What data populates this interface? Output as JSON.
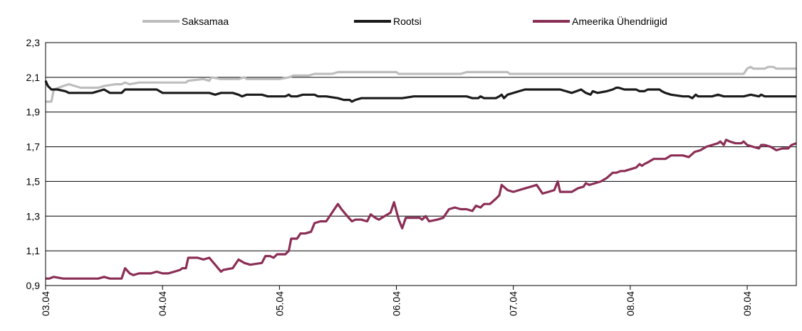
{
  "chart_data": {
    "type": "line",
    "ylim": [
      0.9,
      2.3
    ],
    "yticks": [
      "0,9",
      "1,1",
      "1,3",
      "1,5",
      "1,7",
      "1,9",
      "2,1",
      "2,3"
    ],
    "ytick_values": [
      0.9,
      1.1,
      1.3,
      1.5,
      1.7,
      1.9,
      2.1,
      2.3
    ],
    "xlim": [
      0,
      6.42
    ],
    "xticks": [
      "03.04",
      "04.04",
      "05.04",
      "06.04",
      "07.04",
      "08.04",
      "09.04"
    ],
    "xtick_values": [
      0,
      1,
      2,
      3,
      4,
      5,
      6
    ],
    "grid": "horizontal",
    "legend_position": "top",
    "series": [
      {
        "name": "Saksamaa",
        "color": "#bdbdbd",
        "points": [
          [
            0.0,
            1.96
          ],
          [
            0.05,
            1.96
          ],
          [
            0.07,
            2.03
          ],
          [
            0.15,
            2.05
          ],
          [
            0.2,
            2.06
          ],
          [
            0.3,
            2.04
          ],
          [
            0.45,
            2.04
          ],
          [
            0.5,
            2.05
          ],
          [
            0.6,
            2.06
          ],
          [
            0.65,
            2.06
          ],
          [
            0.68,
            2.07
          ],
          [
            0.72,
            2.06
          ],
          [
            0.8,
            2.07
          ],
          [
            0.95,
            2.07
          ],
          [
            1.0,
            2.07
          ],
          [
            1.2,
            2.07
          ],
          [
            1.22,
            2.08
          ],
          [
            1.35,
            2.09
          ],
          [
            1.4,
            2.08
          ],
          [
            1.42,
            2.1
          ],
          [
            1.5,
            2.09
          ],
          [
            1.6,
            2.09
          ],
          [
            1.65,
            2.09
          ],
          [
            1.7,
            2.1
          ],
          [
            1.72,
            2.09
          ],
          [
            1.8,
            2.09
          ],
          [
            1.95,
            2.09
          ],
          [
            2.0,
            2.09
          ],
          [
            2.08,
            2.1
          ],
          [
            2.12,
            2.11
          ],
          [
            2.25,
            2.11
          ],
          [
            2.3,
            2.12
          ],
          [
            2.45,
            2.12
          ],
          [
            2.5,
            2.13
          ],
          [
            2.6,
            2.13
          ],
          [
            3.0,
            2.13
          ],
          [
            3.02,
            2.12
          ],
          [
            3.5,
            2.12
          ],
          [
            3.55,
            2.12
          ],
          [
            3.6,
            2.13
          ],
          [
            3.8,
            2.13
          ],
          [
            3.95,
            2.13
          ],
          [
            3.97,
            2.12
          ],
          [
            5.5,
            2.12
          ],
          [
            5.97,
            2.12
          ],
          [
            6.0,
            2.15
          ],
          [
            6.03,
            2.16
          ],
          [
            6.05,
            2.15
          ],
          [
            6.15,
            2.15
          ],
          [
            6.18,
            2.16
          ],
          [
            6.22,
            2.16
          ],
          [
            6.25,
            2.15
          ],
          [
            6.42,
            2.15
          ]
        ]
      },
      {
        "name": "Rootsi",
        "color": "#1a1a1a",
        "points": [
          [
            0.0,
            2.08
          ],
          [
            0.02,
            2.05
          ],
          [
            0.05,
            2.03
          ],
          [
            0.1,
            2.03
          ],
          [
            0.17,
            2.02
          ],
          [
            0.2,
            2.01
          ],
          [
            0.4,
            2.01
          ],
          [
            0.5,
            2.03
          ],
          [
            0.55,
            2.01
          ],
          [
            0.65,
            2.01
          ],
          [
            0.68,
            2.03
          ],
          [
            0.95,
            2.03
          ],
          [
            1.0,
            2.01
          ],
          [
            1.4,
            2.01
          ],
          [
            1.45,
            2.0
          ],
          [
            1.5,
            2.01
          ],
          [
            1.6,
            2.01
          ],
          [
            1.65,
            2.0
          ],
          [
            1.68,
            1.99
          ],
          [
            1.72,
            2.0
          ],
          [
            1.85,
            2.0
          ],
          [
            1.9,
            1.99
          ],
          [
            2.05,
            1.99
          ],
          [
            2.08,
            2.0
          ],
          [
            2.1,
            1.99
          ],
          [
            2.15,
            1.99
          ],
          [
            2.2,
            2.0
          ],
          [
            2.3,
            2.0
          ],
          [
            2.33,
            1.99
          ],
          [
            2.4,
            1.99
          ],
          [
            2.5,
            1.98
          ],
          [
            2.55,
            1.97
          ],
          [
            2.6,
            1.97
          ],
          [
            2.62,
            1.96
          ],
          [
            2.65,
            1.97
          ],
          [
            2.7,
            1.98
          ],
          [
            3.05,
            1.98
          ],
          [
            3.15,
            1.99
          ],
          [
            3.6,
            1.99
          ],
          [
            3.65,
            1.98
          ],
          [
            3.7,
            1.98
          ],
          [
            3.72,
            1.99
          ],
          [
            3.75,
            1.98
          ],
          [
            3.85,
            1.98
          ],
          [
            3.88,
            1.99
          ],
          [
            3.9,
            2.0
          ],
          [
            3.92,
            1.98
          ],
          [
            3.95,
            2.0
          ],
          [
            4.05,
            2.02
          ],
          [
            4.1,
            2.03
          ],
          [
            4.15,
            2.03
          ],
          [
            4.25,
            2.03
          ],
          [
            4.3,
            2.03
          ],
          [
            4.4,
            2.03
          ],
          [
            4.45,
            2.02
          ],
          [
            4.5,
            2.01
          ],
          [
            4.58,
            2.03
          ],
          [
            4.62,
            2.01
          ],
          [
            4.66,
            2.0
          ],
          [
            4.68,
            2.02
          ],
          [
            4.72,
            2.01
          ],
          [
            4.8,
            2.02
          ],
          [
            4.85,
            2.03
          ],
          [
            4.88,
            2.04
          ],
          [
            4.9,
            2.04
          ],
          [
            4.95,
            2.03
          ],
          [
            5.05,
            2.03
          ],
          [
            5.08,
            2.02
          ],
          [
            5.12,
            2.02
          ],
          [
            5.15,
            2.03
          ],
          [
            5.25,
            2.03
          ],
          [
            5.27,
            2.02
          ],
          [
            5.3,
            2.01
          ],
          [
            5.35,
            2.0
          ],
          [
            5.45,
            1.99
          ],
          [
            5.5,
            1.99
          ],
          [
            5.53,
            1.98
          ],
          [
            5.56,
            2.0
          ],
          [
            5.58,
            1.99
          ],
          [
            5.6,
            1.99
          ],
          [
            5.7,
            1.99
          ],
          [
            5.75,
            2.0
          ],
          [
            5.8,
            1.99
          ],
          [
            5.97,
            1.99
          ],
          [
            6.03,
            2.0
          ],
          [
            6.1,
            1.99
          ],
          [
            6.12,
            2.0
          ],
          [
            6.15,
            1.99
          ],
          [
            6.42,
            1.99
          ]
        ]
      },
      {
        "name": "Ameerika Ühendriigid",
        "color": "#8b2e55",
        "points": [
          [
            0.0,
            0.94
          ],
          [
            0.03,
            0.94
          ],
          [
            0.07,
            0.95
          ],
          [
            0.15,
            0.94
          ],
          [
            0.2,
            0.94
          ],
          [
            0.3,
            0.94
          ],
          [
            0.45,
            0.94
          ],
          [
            0.5,
            0.95
          ],
          [
            0.55,
            0.94
          ],
          [
            0.6,
            0.94
          ],
          [
            0.65,
            0.94
          ],
          [
            0.68,
            1.0
          ],
          [
            0.72,
            0.97
          ],
          [
            0.75,
            0.96
          ],
          [
            0.8,
            0.97
          ],
          [
            0.85,
            0.97
          ],
          [
            0.9,
            0.97
          ],
          [
            0.95,
            0.98
          ],
          [
            1.0,
            0.97
          ],
          [
            1.05,
            0.97
          ],
          [
            1.1,
            0.98
          ],
          [
            1.15,
            0.99
          ],
          [
            1.17,
            1.0
          ],
          [
            1.2,
            1.0
          ],
          [
            1.22,
            1.06
          ],
          [
            1.3,
            1.06
          ],
          [
            1.35,
            1.05
          ],
          [
            1.4,
            1.06
          ],
          [
            1.45,
            1.02
          ],
          [
            1.5,
            0.98
          ],
          [
            1.52,
            0.99
          ],
          [
            1.6,
            1.0
          ],
          [
            1.65,
            1.05
          ],
          [
            1.7,
            1.03
          ],
          [
            1.75,
            1.02
          ],
          [
            1.85,
            1.03
          ],
          [
            1.88,
            1.07
          ],
          [
            1.92,
            1.07
          ],
          [
            1.95,
            1.06
          ],
          [
            1.98,
            1.08
          ],
          [
            2.0,
            1.08
          ],
          [
            2.05,
            1.08
          ],
          [
            2.08,
            1.1
          ],
          [
            2.1,
            1.17
          ],
          [
            2.15,
            1.17
          ],
          [
            2.18,
            1.2
          ],
          [
            2.22,
            1.2
          ],
          [
            2.27,
            1.21
          ],
          [
            2.3,
            1.26
          ],
          [
            2.35,
            1.27
          ],
          [
            2.4,
            1.27
          ],
          [
            2.45,
            1.32
          ],
          [
            2.5,
            1.37
          ],
          [
            2.53,
            1.34
          ],
          [
            2.58,
            1.3
          ],
          [
            2.62,
            1.27
          ],
          [
            2.65,
            1.28
          ],
          [
            2.7,
            1.28
          ],
          [
            2.75,
            1.27
          ],
          [
            2.78,
            1.31
          ],
          [
            2.82,
            1.29
          ],
          [
            2.85,
            1.28
          ],
          [
            2.9,
            1.3
          ],
          [
            2.95,
            1.32
          ],
          [
            2.98,
            1.38
          ],
          [
            3.02,
            1.28
          ],
          [
            3.05,
            1.23
          ],
          [
            3.08,
            1.29
          ],
          [
            3.12,
            1.29
          ],
          [
            3.2,
            1.29
          ],
          [
            3.22,
            1.28
          ],
          [
            3.25,
            1.3
          ],
          [
            3.28,
            1.27
          ],
          [
            3.35,
            1.28
          ],
          [
            3.4,
            1.29
          ],
          [
            3.45,
            1.34
          ],
          [
            3.5,
            1.35
          ],
          [
            3.55,
            1.34
          ],
          [
            3.6,
            1.34
          ],
          [
            3.65,
            1.33
          ],
          [
            3.68,
            1.36
          ],
          [
            3.72,
            1.35
          ],
          [
            3.75,
            1.37
          ],
          [
            3.8,
            1.37
          ],
          [
            3.85,
            1.4
          ],
          [
            3.88,
            1.42
          ],
          [
            3.9,
            1.48
          ],
          [
            3.95,
            1.45
          ],
          [
            4.0,
            1.44
          ],
          [
            4.05,
            1.45
          ],
          [
            4.1,
            1.46
          ],
          [
            4.15,
            1.47
          ],
          [
            4.2,
            1.48
          ],
          [
            4.22,
            1.46
          ],
          [
            4.25,
            1.43
          ],
          [
            4.3,
            1.44
          ],
          [
            4.35,
            1.45
          ],
          [
            4.38,
            1.5
          ],
          [
            4.4,
            1.44
          ],
          [
            4.45,
            1.44
          ],
          [
            4.5,
            1.44
          ],
          [
            4.55,
            1.46
          ],
          [
            4.6,
            1.47
          ],
          [
            4.62,
            1.49
          ],
          [
            4.65,
            1.48
          ],
          [
            4.7,
            1.49
          ],
          [
            4.75,
            1.5
          ],
          [
            4.8,
            1.52
          ],
          [
            4.85,
            1.55
          ],
          [
            4.88,
            1.55
          ],
          [
            4.92,
            1.56
          ],
          [
            4.95,
            1.56
          ],
          [
            5.0,
            1.57
          ],
          [
            5.05,
            1.58
          ],
          [
            5.08,
            1.6
          ],
          [
            5.1,
            1.59
          ],
          [
            5.12,
            1.6
          ],
          [
            5.15,
            1.61
          ],
          [
            5.2,
            1.63
          ],
          [
            5.25,
            1.63
          ],
          [
            5.3,
            1.63
          ],
          [
            5.35,
            1.65
          ],
          [
            5.4,
            1.65
          ],
          [
            5.45,
            1.65
          ],
          [
            5.5,
            1.64
          ],
          [
            5.55,
            1.67
          ],
          [
            5.6,
            1.68
          ],
          [
            5.65,
            1.7
          ],
          [
            5.7,
            1.71
          ],
          [
            5.75,
            1.72
          ],
          [
            5.77,
            1.73
          ],
          [
            5.8,
            1.71
          ],
          [
            5.82,
            1.74
          ],
          [
            5.85,
            1.73
          ],
          [
            5.9,
            1.72
          ],
          [
            5.95,
            1.72
          ],
          [
            5.97,
            1.73
          ],
          [
            6.0,
            1.71
          ],
          [
            6.05,
            1.7
          ],
          [
            6.1,
            1.69
          ],
          [
            6.12,
            1.71
          ],
          [
            6.15,
            1.71
          ],
          [
            6.2,
            1.7
          ],
          [
            6.25,
            1.68
          ],
          [
            6.3,
            1.69
          ],
          [
            6.35,
            1.69
          ],
          [
            6.38,
            1.71
          ],
          [
            6.42,
            1.72
          ]
        ]
      }
    ]
  }
}
